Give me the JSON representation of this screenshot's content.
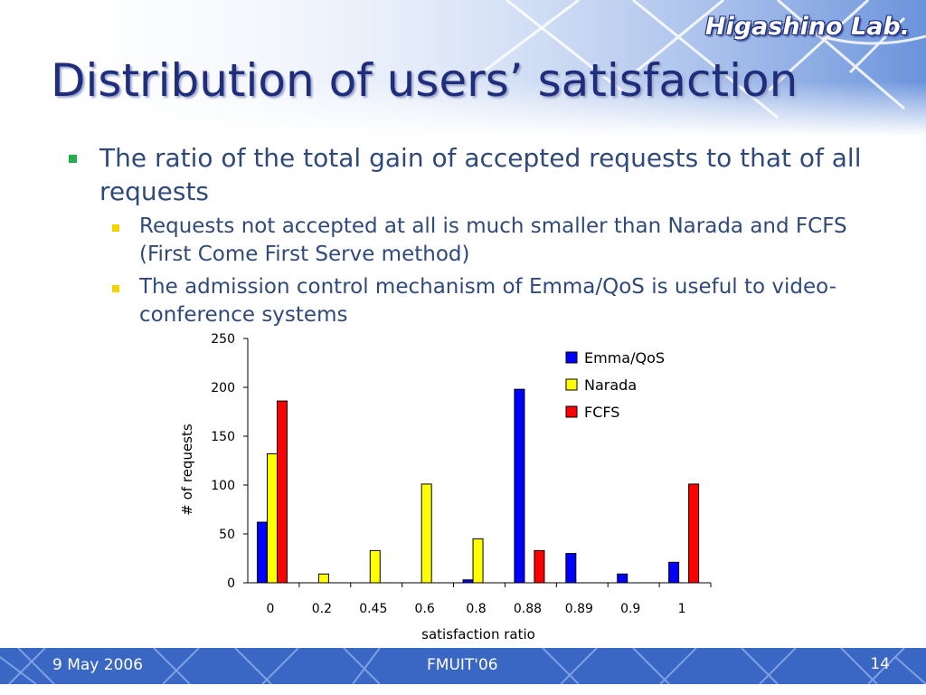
{
  "header": {
    "lab_name": "Higashino Lab.",
    "title": "Distribution of users’ satisfaction"
  },
  "bullets": {
    "main": "The ratio of the total gain of accepted requests to that of all requests",
    "subs": [
      "Requests not accepted at all is much smaller than Narada and FCFS (First Come First Serve method)",
      "The admission control mechanism of Emma/QoS is useful to video-conference systems"
    ]
  },
  "footer": {
    "date": "9 May 2006",
    "conference": "FMUIT'06",
    "page": "14"
  },
  "colors": {
    "title": "#1f2d7c",
    "header_blue": "#3a66c4",
    "bullet_main": "#22b04c",
    "bullet_sub": "#f5d100"
  },
  "chart_data": {
    "type": "bar",
    "title": "",
    "xlabel": "satisfaction ratio",
    "ylabel": "# of requests",
    "categories": [
      "0",
      "0.2",
      "0.45",
      "0.6",
      "0.8",
      "0.88",
      "0.89",
      "0.9",
      "1"
    ],
    "ylim": [
      0,
      250
    ],
    "yticks": [
      0,
      50,
      100,
      150,
      200,
      250
    ],
    "legend_position": "top-right",
    "series": [
      {
        "name": "Emma/QoS",
        "color": "#0000ff",
        "values": [
          62,
          0,
          0,
          0,
          3,
          198,
          30,
          9,
          21
        ]
      },
      {
        "name": "Narada",
        "color": "#ffff00",
        "values": [
          132,
          9,
          33,
          101,
          45,
          0,
          0,
          0,
          0
        ]
      },
      {
        "name": "FCFS",
        "color": "#ff0000",
        "values": [
          186,
          0,
          0,
          0,
          0,
          33,
          0,
          0,
          101
        ]
      }
    ]
  }
}
